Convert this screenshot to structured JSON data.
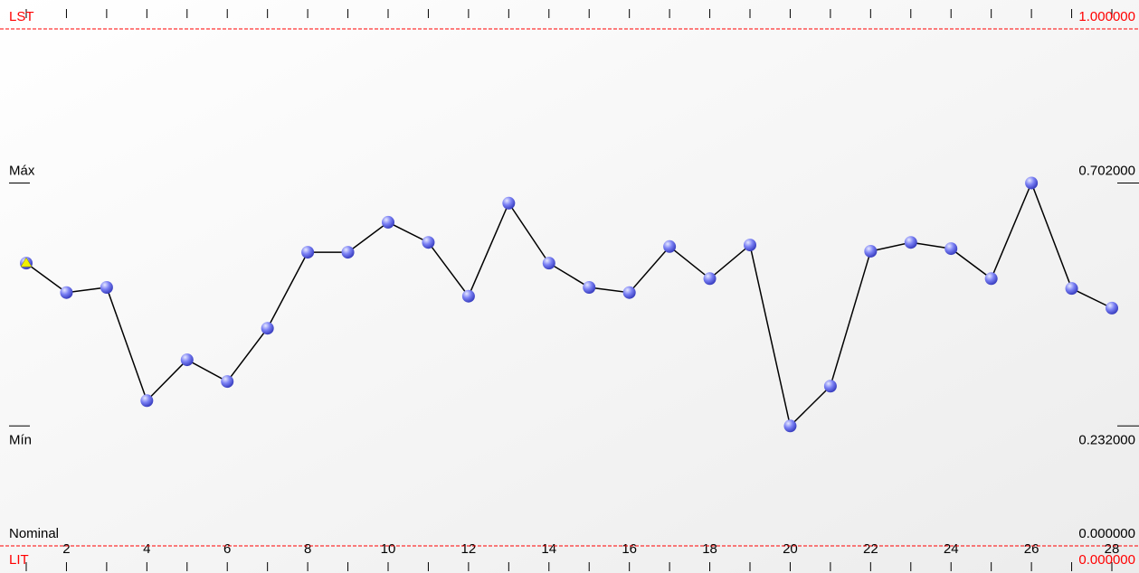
{
  "chart_data": {
    "type": "line",
    "x": [
      1,
      2,
      3,
      4,
      5,
      6,
      7,
      8,
      9,
      10,
      11,
      12,
      13,
      14,
      15,
      16,
      17,
      18,
      19,
      20,
      21,
      22,
      23,
      24,
      25,
      26,
      27,
      28
    ],
    "series": [
      {
        "color": "#6c72f0",
        "line_color": "#000000",
        "values": [
          0.547,
          0.49,
          0.5,
          0.281,
          0.36,
          0.318,
          0.421,
          0.568,
          0.568,
          0.626,
          0.587,
          0.483,
          0.663,
          0.547,
          0.5,
          0.49,
          0.579,
          0.517,
          0.582,
          0.232,
          0.309,
          0.57,
          0.587,
          0.575,
          0.517,
          0.702,
          0.498,
          0.46
        ]
      }
    ],
    "xlim": [
      1,
      28
    ],
    "xticks": [
      2,
      4,
      6,
      8,
      10,
      12,
      14,
      16,
      18,
      20,
      22,
      24,
      26,
      28
    ],
    "ylim": [
      0,
      1
    ],
    "reference_lines": [
      {
        "name": "LST",
        "value": 1,
        "label": "1.000000",
        "color": "#ff0000",
        "style": "dashed"
      },
      {
        "name": "Máx",
        "value": 0.702,
        "label": "0.702000",
        "color": "#000000",
        "style": "tick"
      },
      {
        "name": "Mín",
        "value": 0.232,
        "label": "0.232000",
        "color": "#000000",
        "style": "tick"
      },
      {
        "name": "Nominal",
        "value": 0,
        "label": "0.000000",
        "color": "#000000",
        "style": "none"
      },
      {
        "name": "LIT",
        "value": 0,
        "label": "0.000000",
        "color": "#ff0000",
        "style": "dashed"
      }
    ]
  }
}
